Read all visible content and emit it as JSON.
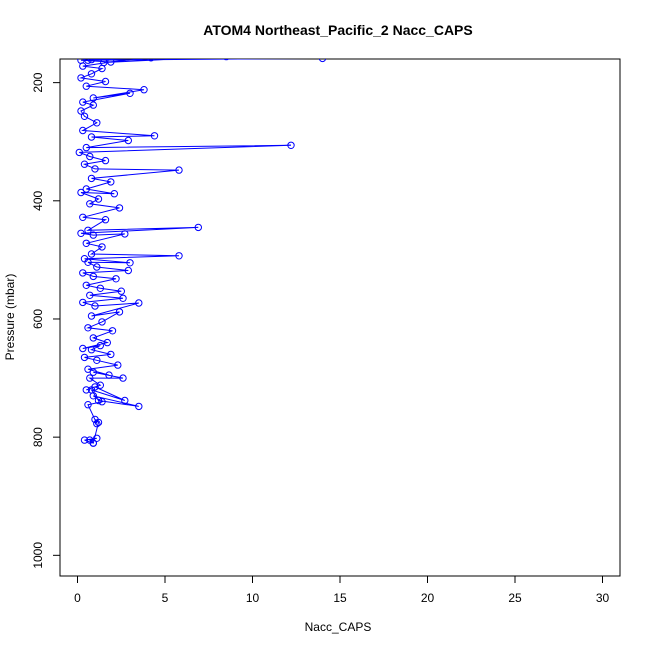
{
  "chart_data": {
    "type": "line",
    "title": "ATOM4 Northeast_Pacific_2 Nacc_CAPS",
    "xlabel": "Nacc_CAPS",
    "ylabel": "Pressure (mbar)",
    "xlim": [
      -1,
      31
    ],
    "ylim": [
      1035,
      160
    ],
    "y_reversed": true,
    "xticks": [
      0,
      5,
      10,
      15,
      20,
      25,
      30
    ],
    "yticks": [
      200,
      400,
      600,
      800,
      1000
    ],
    "grid": false,
    "series_color": "#0000ff",
    "marker": "open-circle",
    "points": [
      [
        0.9,
        810
      ],
      [
        0.7,
        805
      ],
      [
        1.1,
        802
      ],
      [
        0.4,
        805
      ],
      [
        0.9,
        810
      ],
      [
        1.2,
        775
      ],
      [
        1.0,
        770
      ],
      [
        1.1,
        777
      ],
      [
        0.6,
        745
      ],
      [
        1.4,
        740
      ],
      [
        0.9,
        730
      ],
      [
        3.5,
        748
      ],
      [
        1.2,
        738
      ],
      [
        0.8,
        720
      ],
      [
        2.7,
        738
      ],
      [
        1.0,
        715
      ],
      [
        0.5,
        720
      ],
      [
        1.3,
        712
      ],
      [
        0.7,
        700
      ],
      [
        2.6,
        700
      ],
      [
        0.9,
        690
      ],
      [
        1.8,
        695
      ],
      [
        0.6,
        685
      ],
      [
        2.3,
        678
      ],
      [
        1.1,
        670
      ],
      [
        0.4,
        665
      ],
      [
        1.9,
        660
      ],
      [
        0.8,
        652
      ],
      [
        1.3,
        645
      ],
      [
        0.3,
        650
      ],
      [
        1.7,
        640
      ],
      [
        0.9,
        632
      ],
      [
        2.0,
        620
      ],
      [
        0.6,
        615
      ],
      [
        1.4,
        605
      ],
      [
        2.4,
        588
      ],
      [
        0.8,
        595
      ],
      [
        3.5,
        573
      ],
      [
        1.0,
        578
      ],
      [
        0.3,
        572
      ],
      [
        2.6,
        565
      ],
      [
        0.7,
        560
      ],
      [
        2.5,
        553
      ],
      [
        1.3,
        548
      ],
      [
        0.5,
        543
      ],
      [
        2.2,
        532
      ],
      [
        0.9,
        528
      ],
      [
        0.3,
        522
      ],
      [
        2.9,
        518
      ],
      [
        1.1,
        512
      ],
      [
        0.6,
        504
      ],
      [
        3.0,
        505
      ],
      [
        0.4,
        498
      ],
      [
        5.8,
        493
      ],
      [
        0.8,
        490
      ],
      [
        1.4,
        478
      ],
      [
        0.5,
        472
      ],
      [
        2.7,
        456
      ],
      [
        0.9,
        458
      ],
      [
        0.2,
        455
      ],
      [
        6.9,
        445
      ],
      [
        0.6,
        450
      ],
      [
        1.6,
        432
      ],
      [
        0.3,
        428
      ],
      [
        2.4,
        412
      ],
      [
        0.7,
        405
      ],
      [
        1.2,
        397
      ],
      [
        0.2,
        386
      ],
      [
        2.1,
        388
      ],
      [
        0.5,
        380
      ],
      [
        1.9,
        368
      ],
      [
        0.8,
        362
      ],
      [
        5.8,
        348
      ],
      [
        1.0,
        346
      ],
      [
        0.4,
        338
      ],
      [
        1.6,
        332
      ],
      [
        0.7,
        325
      ],
      [
        0.1,
        318
      ],
      [
        12.2,
        306
      ],
      [
        0.5,
        310
      ],
      [
        2.9,
        298
      ],
      [
        0.8,
        292
      ],
      [
        4.4,
        290
      ],
      [
        0.3,
        281
      ],
      [
        1.1,
        268
      ],
      [
        0.4,
        257
      ],
      [
        0.2,
        248
      ],
      [
        0.9,
        238
      ],
      [
        0.3,
        233
      ],
      [
        3.0,
        218
      ],
      [
        0.9,
        226
      ],
      [
        3.8,
        212
      ],
      [
        0.5,
        206
      ],
      [
        1.6,
        198
      ],
      [
        0.2,
        192
      ],
      [
        0.8,
        185
      ],
      [
        1.4,
        176
      ],
      [
        0.3,
        172
      ],
      [
        1.9,
        165
      ],
      [
        0.2,
        162
      ],
      [
        0.8,
        161
      ],
      [
        4.2,
        158
      ],
      [
        1.5,
        166
      ],
      [
        8.5,
        156
      ],
      [
        14.0,
        159
      ],
      [
        0.6,
        162
      ]
    ]
  }
}
